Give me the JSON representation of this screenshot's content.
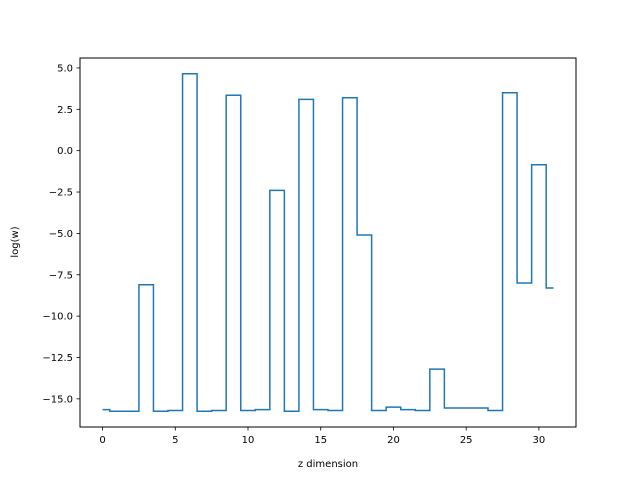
{
  "chart_data": {
    "type": "line",
    "drawstyle": "steps-mid",
    "title": "",
    "xlabel": "z dimension",
    "ylabel": "log(w)",
    "xlim": [
      -1.55,
      32.55
    ],
    "ylim": [
      -16.7,
      5.6
    ],
    "xticks": [
      0,
      5,
      10,
      15,
      20,
      25,
      30
    ],
    "yticks": [
      -15.0,
      -12.5,
      -10.0,
      -7.5,
      -5.0,
      -2.5,
      0.0,
      2.5,
      5.0
    ],
    "xtick_labels": [
      "0",
      "5",
      "10",
      "15",
      "20",
      "25",
      "30"
    ],
    "ytick_labels": [
      "−15.0",
      "−12.5",
      "−10.0",
      "−7.5",
      "−5.0",
      "−2.5",
      "0.0",
      "2.5",
      "5.0"
    ],
    "grid": false,
    "line_color": "#1f77b4",
    "series": [
      {
        "x": [
          0,
          1,
          2,
          3,
          4,
          5,
          6,
          7,
          8,
          9,
          10,
          11,
          12,
          13,
          14,
          15,
          16,
          17,
          18,
          19,
          20,
          21,
          22,
          23,
          24,
          25,
          26,
          27,
          28,
          29,
          30,
          31
        ],
        "y": [
          -15.65,
          -15.75,
          -15.75,
          -8.1,
          -15.75,
          -15.7,
          4.65,
          -15.75,
          -15.7,
          3.35,
          -15.7,
          -15.65,
          -2.4,
          -15.75,
          3.1,
          -15.65,
          -15.7,
          3.2,
          -5.1,
          -15.7,
          -15.5,
          -15.65,
          -15.7,
          -13.2,
          -15.55,
          -15.55,
          -15.55,
          -15.7,
          3.5,
          -8.0,
          -0.85,
          -8.3
        ]
      }
    ]
  }
}
